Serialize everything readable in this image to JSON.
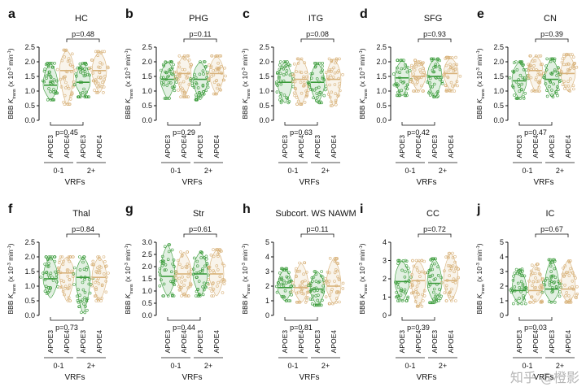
{
  "colors": {
    "apoe3": "#3a9b3a",
    "apoe4": "#d8b27a",
    "axis": "#111111"
  },
  "common": {
    "groups": [
      "APOE3",
      "APOE4",
      "APOE3",
      "APOE4"
    ],
    "vrf_groups": [
      "0-1",
      "2+"
    ],
    "vrf_label": "VRFs",
    "ylabel_main": "BBB ",
    "ylabel_italic": "K",
    "ylabel_sub": "trans",
    "ylabel_units": " (x 10",
    "ylabel_exp1": "-3",
    "ylabel_units2": " min",
    "ylabel_exp2": "-1",
    "ylabel_close": ")"
  },
  "watermark": "知乎 @橙影",
  "chart_data": [
    {
      "type": "violin",
      "letter": "a",
      "title": "HC",
      "ylim": [
        0,
        2.5
      ],
      "yticks": [
        "0.0",
        "0.5",
        "1.0",
        "1.5",
        "2.0",
        "2.5"
      ],
      "p_top": "p=0.48",
      "p_bottom": "p=0.45",
      "series": [
        {
          "group": "APOE3",
          "vrf": "0-1",
          "median": 1.2,
          "min": 0.7,
          "max": 1.95
        },
        {
          "group": "APOE4",
          "vrf": "0-1",
          "median": 1.7,
          "min": 0.55,
          "max": 2.4
        },
        {
          "group": "APOE3",
          "vrf": "2+",
          "median": 1.3,
          "min": 0.8,
          "max": 1.95
        },
        {
          "group": "APOE4",
          "vrf": "2+",
          "median": 1.7,
          "min": 0.95,
          "max": 2.35
        }
      ]
    },
    {
      "type": "violin",
      "letter": "b",
      "title": "PHG",
      "ylim": [
        0,
        2.5
      ],
      "yticks": [
        "0.0",
        "0.5",
        "1.0",
        "1.5",
        "2.0",
        "2.5"
      ],
      "p_top": "p=0.11",
      "p_bottom": "p=0.29",
      "series": [
        {
          "group": "APOE3",
          "vrf": "0-1",
          "median": 1.4,
          "min": 0.75,
          "max": 2.0
        },
        {
          "group": "APOE4",
          "vrf": "0-1",
          "median": 1.6,
          "min": 0.8,
          "max": 2.2
        },
        {
          "group": "APOE3",
          "vrf": "2+",
          "median": 1.4,
          "min": 0.7,
          "max": 2.0
        },
        {
          "group": "APOE4",
          "vrf": "2+",
          "median": 1.6,
          "min": 0.9,
          "max": 2.2
        }
      ]
    },
    {
      "type": "violin",
      "letter": "c",
      "title": "ITG",
      "ylim": [
        0,
        2.5
      ],
      "yticks": [
        "0.0",
        "0.5",
        "1.0",
        "1.5",
        "2.0",
        "2.5"
      ],
      "p_top": "p=0.08",
      "p_bottom": "p=0.63",
      "series": [
        {
          "group": "APOE3",
          "vrf": "0-1",
          "median": 1.3,
          "min": 0.6,
          "max": 2.0
        },
        {
          "group": "APOE4",
          "vrf": "0-1",
          "median": 1.4,
          "min": 0.55,
          "max": 2.1
        },
        {
          "group": "APOE3",
          "vrf": "2+",
          "median": 1.3,
          "min": 0.6,
          "max": 1.95
        },
        {
          "group": "APOE4",
          "vrf": "2+",
          "median": 1.4,
          "min": 0.5,
          "max": 2.1
        }
      ]
    },
    {
      "type": "violin",
      "letter": "d",
      "title": "SFG",
      "ylim": [
        0,
        2.5
      ],
      "yticks": [
        "0.0",
        "0.5",
        "1.0",
        "1.5",
        "2.0",
        "2.5"
      ],
      "p_top": "p=0.93",
      "p_bottom": "p=0.42",
      "series": [
        {
          "group": "APOE3",
          "vrf": "0-1",
          "median": 1.45,
          "min": 0.85,
          "max": 2.05
        },
        {
          "group": "APOE4",
          "vrf": "0-1",
          "median": 1.5,
          "min": 1.0,
          "max": 2.05
        },
        {
          "group": "APOE3",
          "vrf": "2+",
          "median": 1.5,
          "min": 0.8,
          "max": 2.1
        },
        {
          "group": "APOE4",
          "vrf": "2+",
          "median": 1.6,
          "min": 1.0,
          "max": 2.15
        }
      ]
    },
    {
      "type": "violin",
      "letter": "e",
      "title": "CN",
      "ylim": [
        0,
        2.5
      ],
      "yticks": [
        "0.0",
        "0.5",
        "1.0",
        "1.5",
        "2.0",
        "2.5"
      ],
      "p_top": "p=0.39",
      "p_bottom": "p=0.47",
      "series": [
        {
          "group": "APOE3",
          "vrf": "0-1",
          "median": 1.35,
          "min": 0.75,
          "max": 2.0
        },
        {
          "group": "APOE4",
          "vrf": "0-1",
          "median": 1.7,
          "min": 1.0,
          "max": 2.2
        },
        {
          "group": "APOE3",
          "vrf": "2+",
          "median": 1.4,
          "min": 0.8,
          "max": 2.1
        },
        {
          "group": "APOE4",
          "vrf": "2+",
          "median": 1.6,
          "min": 1.0,
          "max": 2.25
        }
      ]
    },
    {
      "type": "violin",
      "letter": "f",
      "title": "Thal",
      "ylim": [
        0,
        2.5
      ],
      "yticks": [
        "0.0",
        "0.5",
        "1.0",
        "1.5",
        "2.0",
        "2.5"
      ],
      "p_top": "p=0.84",
      "p_bottom": "p=0.73",
      "series": [
        {
          "group": "APOE3",
          "vrf": "0-1",
          "median": 1.25,
          "min": 0.6,
          "max": 2.0
        },
        {
          "group": "APOE4",
          "vrf": "0-1",
          "median": 1.45,
          "min": 0.5,
          "max": 2.0
        },
        {
          "group": "APOE3",
          "vrf": "2+",
          "median": 1.3,
          "min": 0.1,
          "max": 2.0
        },
        {
          "group": "APOE4",
          "vrf": "2+",
          "median": 1.3,
          "min": 0.5,
          "max": 2.0
        }
      ]
    },
    {
      "type": "violin",
      "letter": "g",
      "title": "Str",
      "ylim": [
        0,
        3.0
      ],
      "yticks": [
        "0.0",
        "0.5",
        "1.0",
        "1.5",
        "2.0",
        "2.5",
        "3.0"
      ],
      "p_top": "p=0.61",
      "p_bottom": "p=0.44",
      "series": [
        {
          "group": "APOE3",
          "vrf": "0-1",
          "median": 1.6,
          "min": 0.8,
          "max": 2.9
        },
        {
          "group": "APOE4",
          "vrf": "0-1",
          "median": 1.7,
          "min": 0.8,
          "max": 2.6
        },
        {
          "group": "APOE3",
          "vrf": "2+",
          "median": 1.7,
          "min": 0.8,
          "max": 2.6
        },
        {
          "group": "APOE4",
          "vrf": "2+",
          "median": 1.7,
          "min": 0.8,
          "max": 2.7
        }
      ]
    },
    {
      "type": "violin",
      "letter": "h",
      "title": "Subcort. WS NAWM",
      "ylim": [
        0,
        5
      ],
      "yticks": [
        "0",
        "1",
        "2",
        "3",
        "4",
        "5"
      ],
      "p_top": "p=0.11",
      "p_bottom": "p=0.81",
      "series": [
        {
          "group": "APOE3",
          "vrf": "0-1",
          "median": 1.9,
          "min": 1.0,
          "max": 3.2
        },
        {
          "group": "APOE4",
          "vrf": "0-1",
          "median": 1.9,
          "min": 0.9,
          "max": 3.6
        },
        {
          "group": "APOE3",
          "vrf": "2+",
          "median": 1.8,
          "min": 0.7,
          "max": 3.0
        },
        {
          "group": "APOE4",
          "vrf": "2+",
          "median": 2.0,
          "min": 0.8,
          "max": 3.9
        }
      ]
    },
    {
      "type": "violin",
      "letter": "i",
      "title": "CC",
      "ylim": [
        0,
        4
      ],
      "yticks": [
        "0",
        "1",
        "2",
        "3",
        "4"
      ],
      "p_top": "p=0.72",
      "p_bottom": "p=0.39",
      "series": [
        {
          "group": "APOE3",
          "vrf": "0-1",
          "median": 1.85,
          "min": 0.8,
          "max": 3.0
        },
        {
          "group": "APOE4",
          "vrf": "0-1",
          "median": 1.9,
          "min": 0.5,
          "max": 3.0
        },
        {
          "group": "APOE3",
          "vrf": "2+",
          "median": 1.75,
          "min": 0.7,
          "max": 3.1
        },
        {
          "group": "APOE4",
          "vrf": "2+",
          "median": 1.9,
          "min": 0.8,
          "max": 3.4
        }
      ]
    },
    {
      "type": "violin",
      "letter": "j",
      "title": "IC",
      "ylim": [
        0,
        5
      ],
      "yticks": [
        "0",
        "1",
        "2",
        "3",
        "4",
        "5"
      ],
      "p_top": "p=0.67",
      "p_bottom": "p=0.03",
      "series": [
        {
          "group": "APOE3",
          "vrf": "0-1",
          "median": 1.7,
          "min": 0.8,
          "max": 3.2
        },
        {
          "group": "APOE4",
          "vrf": "0-1",
          "median": 1.7,
          "min": 0.9,
          "max": 3.5
        },
        {
          "group": "APOE3",
          "vrf": "2+",
          "median": 1.8,
          "min": 0.9,
          "max": 3.8
        },
        {
          "group": "APOE4",
          "vrf": "2+",
          "median": 1.8,
          "min": 0.9,
          "max": 3.8
        }
      ]
    }
  ]
}
